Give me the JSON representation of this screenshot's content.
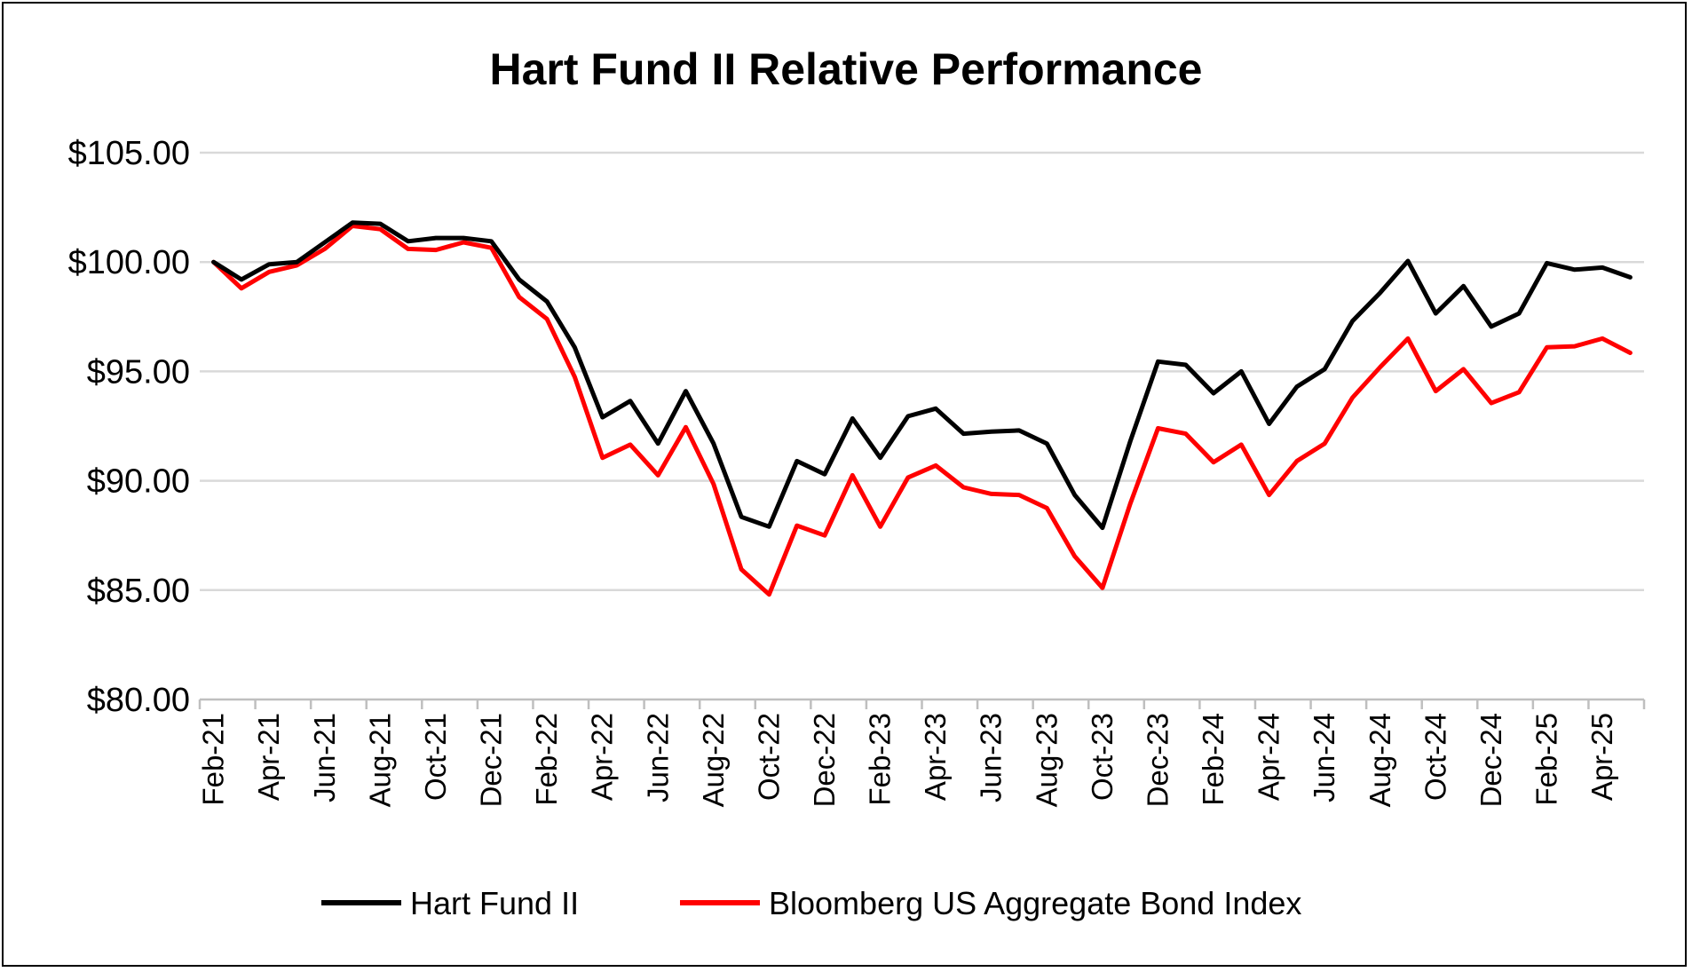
{
  "chart_data": {
    "type": "line",
    "title": "Hart Fund II Relative Performance",
    "ylim": [
      80,
      105
    ],
    "yticks": [
      80,
      85,
      90,
      95,
      100,
      105
    ],
    "ytick_labels": [
      "$80.00",
      "$85.00",
      "$90.00",
      "$95.00",
      "$100.00",
      "$105.00"
    ],
    "grid": true,
    "legend_position": "bottom",
    "categories": [
      "Feb-21",
      "Mar-21",
      "Apr-21",
      "May-21",
      "Jun-21",
      "Jul-21",
      "Aug-21",
      "Sep-21",
      "Oct-21",
      "Nov-21",
      "Dec-21",
      "Jan-22",
      "Feb-22",
      "Mar-22",
      "Apr-22",
      "May-22",
      "Jun-22",
      "Jul-22",
      "Aug-22",
      "Sep-22",
      "Oct-22",
      "Nov-22",
      "Dec-22",
      "Jan-23",
      "Feb-23",
      "Mar-23",
      "Apr-23",
      "May-23",
      "Jun-23",
      "Jul-23",
      "Aug-23",
      "Sep-23",
      "Oct-23",
      "Nov-23",
      "Dec-23",
      "Jan-24",
      "Feb-24",
      "Mar-24",
      "Apr-24",
      "May-24",
      "Jun-24",
      "Jul-24",
      "Aug-24",
      "Sep-24",
      "Oct-24",
      "Nov-24",
      "Dec-24",
      "Jan-25",
      "Feb-25",
      "Mar-25",
      "Apr-25",
      "May-25"
    ],
    "x_tick_labels": [
      "Feb-21",
      "Apr-21",
      "Jun-21",
      "Aug-21",
      "Oct-21",
      "Dec-21",
      "Feb-22",
      "Apr-22",
      "Jun-22",
      "Aug-22",
      "Oct-22",
      "Dec-22",
      "Feb-23",
      "Apr-23",
      "Jun-23",
      "Aug-23",
      "Oct-23",
      "Dec-23",
      "Feb-24",
      "Apr-24",
      "Jun-24",
      "Aug-24",
      "Oct-24",
      "Dec-24",
      "Feb-25",
      "Apr-25"
    ],
    "series": [
      {
        "name": "Hart Fund II",
        "color": "#000000",
        "values": [
          100.0,
          99.2,
          99.9,
          100.0,
          100.9,
          101.8,
          101.75,
          100.95,
          101.1,
          101.1,
          100.95,
          99.2,
          98.2,
          96.1,
          92.9,
          93.65,
          91.7,
          94.1,
          91.7,
          88.35,
          87.9,
          90.9,
          90.3,
          92.85,
          91.05,
          92.95,
          93.3,
          92.15,
          92.25,
          92.3,
          91.7,
          89.35,
          87.85,
          91.8,
          95.45,
          95.3,
          94.0,
          95.0,
          92.6,
          94.3,
          95.1,
          97.3,
          98.6,
          100.05,
          97.65,
          98.9,
          97.05,
          97.65,
          99.95,
          99.65,
          99.75,
          99.3
        ]
      },
      {
        "name": "Bloomberg US Aggregate Bond Index",
        "color": "#ff0000",
        "values": [
          100.0,
          98.8,
          99.55,
          99.85,
          100.6,
          101.65,
          101.5,
          100.6,
          100.55,
          100.9,
          100.65,
          98.4,
          97.4,
          94.75,
          91.05,
          91.65,
          90.25,
          92.45,
          89.85,
          85.95,
          84.8,
          87.95,
          87.5,
          90.25,
          87.9,
          90.15,
          90.7,
          89.7,
          89.4,
          89.35,
          88.75,
          86.55,
          85.1,
          88.95,
          92.4,
          92.15,
          90.85,
          91.65,
          89.35,
          90.9,
          91.7,
          93.8,
          95.2,
          96.5,
          94.1,
          95.1,
          93.55,
          94.05,
          96.1,
          96.15,
          96.5,
          95.85
        ]
      }
    ]
  }
}
